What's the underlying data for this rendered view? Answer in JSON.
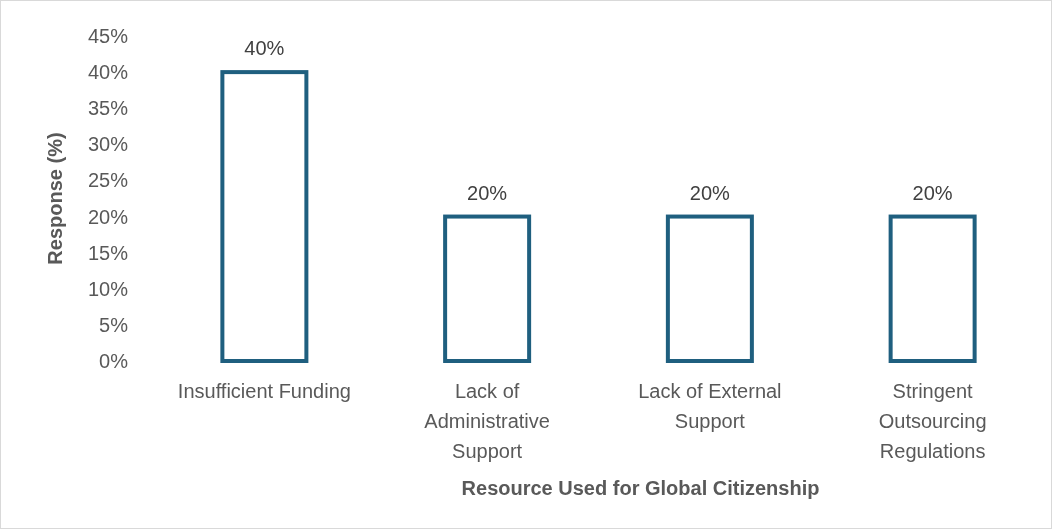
{
  "chart_data": {
    "type": "bar",
    "xlabel": "Resource Used for Global Citizenship",
    "ylabel": "Response (%)",
    "categories": [
      "Insufficient Funding",
      "Lack of Administrative Support",
      "Lack of External Support",
      "Stringent Outsourcing Regulations"
    ],
    "values": [
      40,
      20,
      20,
      20
    ],
    "value_labels": [
      "40%",
      "20%",
      "20%",
      "20%"
    ],
    "color": "#1f5f7f",
    "ylim": [
      0,
      45
    ],
    "yticks": [
      {
        "value": 0,
        "label": "0%"
      },
      {
        "value": 5,
        "label": "5%"
      },
      {
        "value": 10,
        "label": "10%"
      },
      {
        "value": 15,
        "label": "15%"
      },
      {
        "value": 20,
        "label": "20%"
      },
      {
        "value": 25,
        "label": "25%"
      },
      {
        "value": 30,
        "label": "30%"
      },
      {
        "value": 35,
        "label": "35%"
      },
      {
        "value": 40,
        "label": "40%"
      },
      {
        "value": 45,
        "label": "45%"
      }
    ],
    "grid": false
  }
}
